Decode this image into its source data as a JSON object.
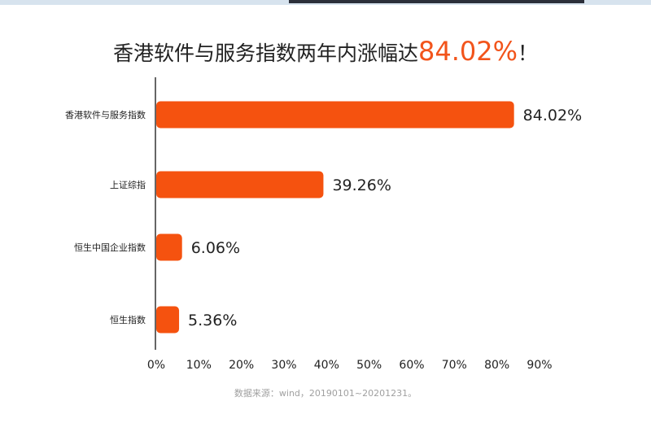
{
  "colors": {
    "bar": "#f5520f",
    "axis": "#333333",
    "text": "#222222",
    "accent": "#f2541b",
    "source": "#a0a0a0"
  },
  "chart_data": {
    "type": "bar",
    "orientation": "horizontal",
    "title": "香港软件与服务指数两年内涨幅达",
    "title_highlight": "84.02%",
    "title_suffix": "！",
    "categories": [
      "香港软件与服务指数",
      "上证综指",
      "恒生中国企业指数",
      "恒生指数"
    ],
    "values": [
      84.02,
      39.26,
      6.06,
      5.36
    ],
    "value_labels": [
      "84.02%",
      "39.26%",
      "6.06%",
      "5.36%"
    ],
    "xlim": [
      0,
      90
    ],
    "xticks": [
      0,
      10,
      20,
      30,
      40,
      50,
      60,
      70,
      80,
      90
    ],
    "xtick_labels": [
      "0%",
      "10%",
      "20%",
      "30%",
      "40%",
      "50%",
      "60%",
      "70%",
      "80%",
      "90%"
    ],
    "grid": false,
    "legend": "none"
  },
  "source_note": "数据来源：wind，20190101~20201231。"
}
